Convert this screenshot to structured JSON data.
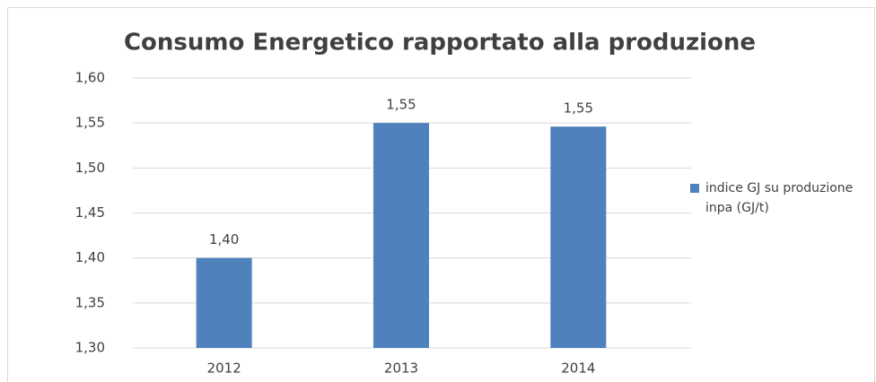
{
  "chart_data": {
    "type": "bar",
    "title": "Consumo Energetico rapportato alla produzione",
    "categories": [
      "2012",
      "2013",
      "2014"
    ],
    "series": [
      {
        "name": "indice GJ su produzione inpa (GJ/t)",
        "color": "#4f81bd",
        "values": [
          1.4,
          1.55,
          1.546
        ],
        "value_labels": [
          "1,40",
          "1,55",
          "1,55"
        ]
      }
    ],
    "ylim": [
      1.3,
      1.6
    ],
    "yticks": [
      {
        "value": 1.3,
        "label": "1,30"
      },
      {
        "value": 1.35,
        "label": "1,35"
      },
      {
        "value": 1.4,
        "label": "1,40"
      },
      {
        "value": 1.45,
        "label": "1,45"
      },
      {
        "value": 1.5,
        "label": "1,50"
      },
      {
        "value": 1.55,
        "label": "1,55"
      },
      {
        "value": 1.6,
        "label": "1,60"
      }
    ],
    "grid": true,
    "legend": "right"
  }
}
